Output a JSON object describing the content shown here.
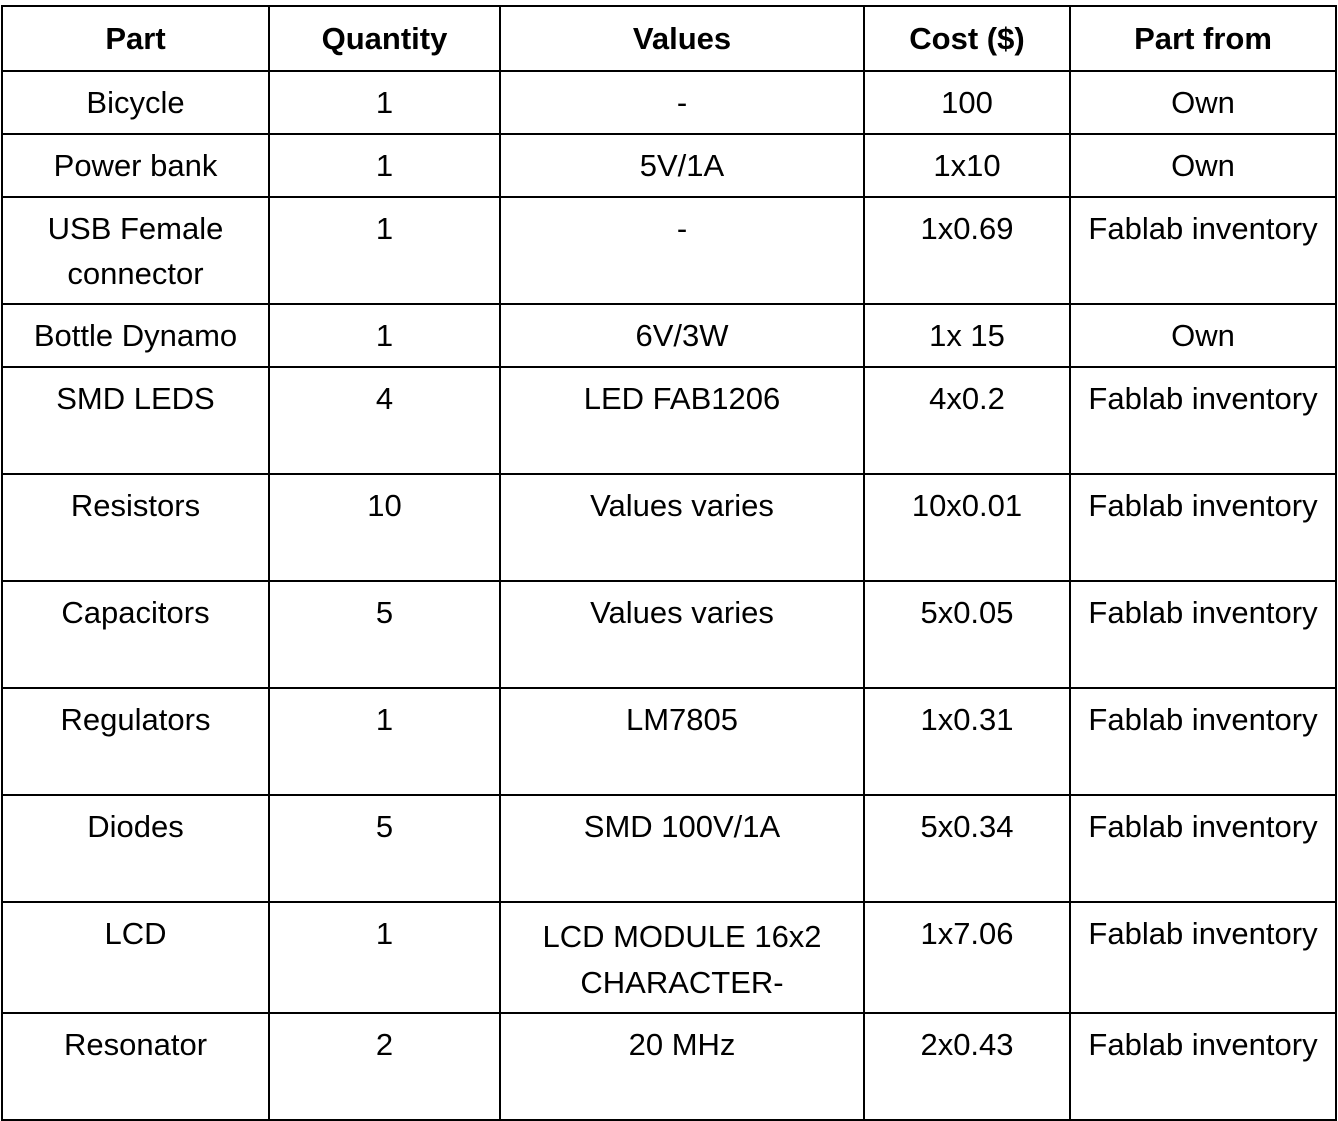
{
  "headers": [
    "Part",
    "Quantity",
    "Values",
    "Cost ($)",
    "Part from"
  ],
  "rows": [
    {
      "part": "Bicycle",
      "quantity": "1",
      "values": "-",
      "cost": "100",
      "from": "Own",
      "tall": false
    },
    {
      "part": "Power bank",
      "quantity": "1",
      "values": "5V/1A",
      "cost": "1x10",
      "from": "Own",
      "tall": false
    },
    {
      "part": "USB Female connector",
      "quantity": "1",
      "values": "-",
      "cost": "1x0.69",
      "from": "Fablab inventory",
      "tall": true
    },
    {
      "part": "Bottle Dynamo",
      "quantity": "1",
      "values": "6V/3W",
      "cost": "1x 15",
      "from": "Own",
      "tall": false
    },
    {
      "part": "SMD LEDS",
      "quantity": "4",
      "values": "LED FAB1206",
      "cost": "4x0.2",
      "from": "Fablab inventory",
      "tall": true
    },
    {
      "part": "Resistors",
      "quantity": "10",
      "values": "Values varies",
      "cost": "10x0.01",
      "from": "Fablab inventory",
      "tall": true
    },
    {
      "part": "Capacitors",
      "quantity": "5",
      "values": "Values varies",
      "cost": "5x0.05",
      "from": "Fablab inventory",
      "tall": true
    },
    {
      "part": "Regulators",
      "quantity": "1",
      "values": "LM7805",
      "cost": "1x0.31",
      "from": "Fablab inventory",
      "tall": true
    },
    {
      "part": "Diodes",
      "quantity": "5",
      "values": "SMD 100V/1A",
      "cost": "5x0.34",
      "from": "Fablab inventory",
      "tall": true
    },
    {
      "part": "LCD",
      "quantity": "1",
      "values": "LCD MODULE 16x2 CHARACTER-",
      "cost": "1x7.06",
      "from": "Fablab inventory",
      "tall": true
    },
    {
      "part": "Resonator",
      "quantity": "2",
      "values": "20 MHz",
      "cost": "2x0.43",
      "from": "Fablab inventory",
      "tall": true
    }
  ]
}
